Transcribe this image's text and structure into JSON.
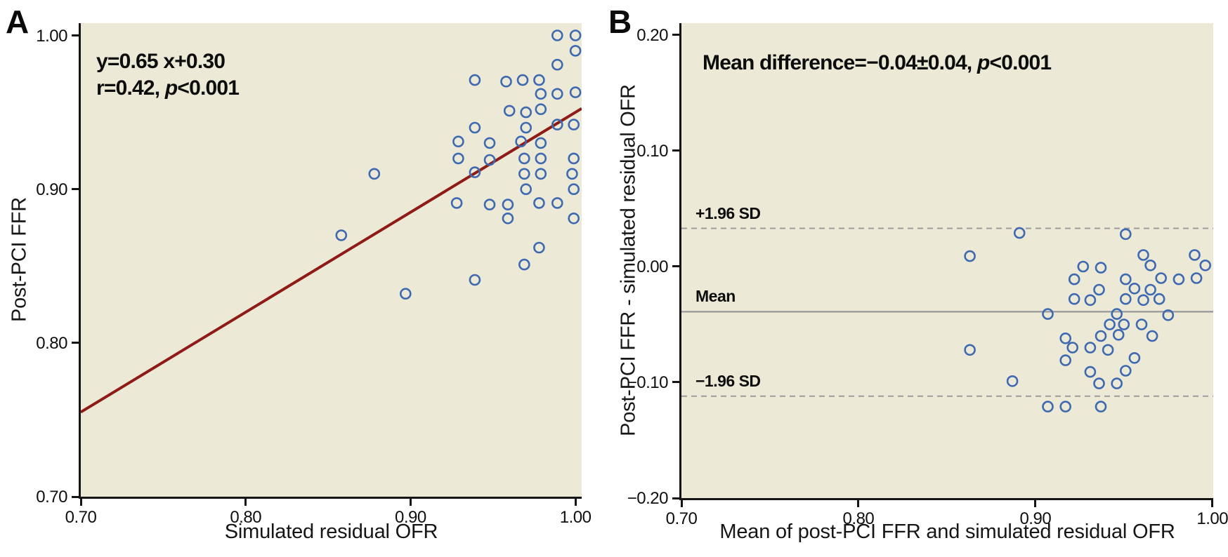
{
  "colors": {
    "plot_background": "#ECE9D6",
    "point_stroke": "#3E69B1",
    "regression_line": "#8E1B16",
    "reference_line": "#9C9C9C",
    "axis": "#151515"
  },
  "chart_data": [
    {
      "type": "scatter",
      "panel_label": "A",
      "annotation": [
        {
          "pre": "y=0.65 x+0.30",
          "italic": "",
          "post": ""
        },
        {
          "pre": "r=0.42, ",
          "italic": "p",
          "post": "<0.001"
        }
      ],
      "xlabel": "Simulated residual OFR",
      "ylabel": "Post-PCI FFR",
      "xlim": [
        0.7,
        1.0038
      ],
      "ylim": [
        0.7,
        1.008
      ],
      "grid": false,
      "xticks": [
        {
          "v": 0.7,
          "label": "0.70"
        },
        {
          "v": 0.8,
          "label": "0.80"
        },
        {
          "v": 0.9,
          "label": "0.90"
        },
        {
          "v": 1.0,
          "label": "1.00"
        }
      ],
      "yticks": [
        {
          "v": 1.0,
          "label": "1.00"
        },
        {
          "v": 0.9,
          "label": "0.90"
        },
        {
          "v": 0.8,
          "label": "0.80"
        },
        {
          "v": 0.7,
          "label": "0.70"
        }
      ],
      "regression_line": {
        "slope": 0.65,
        "intercept": 0.3,
        "r": "0.42",
        "p": "<0.001"
      },
      "points": [
        [
          0.989,
          1.0
        ],
        [
          1.0,
          1.0
        ],
        [
          1.0,
          0.99
        ],
        [
          0.989,
          0.981
        ],
        [
          0.939,
          0.971
        ],
        [
          0.958,
          0.97
        ],
        [
          0.968,
          0.971
        ],
        [
          0.978,
          0.971
        ],
        [
          0.979,
          0.962
        ],
        [
          0.989,
          0.962
        ],
        [
          1.0,
          0.963
        ],
        [
          0.96,
          0.951
        ],
        [
          0.97,
          0.95
        ],
        [
          0.979,
          0.952
        ],
        [
          0.939,
          0.94
        ],
        [
          0.97,
          0.94
        ],
        [
          0.989,
          0.942
        ],
        [
          0.999,
          0.942
        ],
        [
          0.929,
          0.931
        ],
        [
          0.948,
          0.93
        ],
        [
          0.967,
          0.931
        ],
        [
          0.979,
          0.93
        ],
        [
          0.929,
          0.92
        ],
        [
          0.948,
          0.919
        ],
        [
          0.939,
          0.911
        ],
        [
          0.969,
          0.92
        ],
        [
          0.979,
          0.92
        ],
        [
          0.999,
          0.92
        ],
        [
          0.969,
          0.91
        ],
        [
          0.979,
          0.91
        ],
        [
          0.998,
          0.91
        ],
        [
          0.97,
          0.9
        ],
        [
          0.999,
          0.9
        ],
        [
          0.928,
          0.891
        ],
        [
          0.948,
          0.89
        ],
        [
          0.959,
          0.89
        ],
        [
          0.978,
          0.891
        ],
        [
          0.989,
          0.891
        ],
        [
          0.959,
          0.881
        ],
        [
          0.999,
          0.881
        ],
        [
          0.978,
          0.862
        ],
        [
          0.969,
          0.851
        ],
        [
          0.939,
          0.841
        ],
        [
          0.897,
          0.832
        ],
        [
          0.878,
          0.91
        ],
        [
          0.858,
          0.87
        ]
      ]
    },
    {
      "type": "scatter",
      "panel_label": "B",
      "annotation": [
        {
          "pre": "Mean difference=−0.04±0.04, ",
          "italic": "p",
          "post": "<0.001"
        }
      ],
      "xlabel": "Mean of post-PCI FFR and simulated residual OFR",
      "ylabel": "Post-PCI FFR - simulated residual OFR",
      "xlim": [
        0.7,
        1.0005
      ],
      "ylim": [
        -0.2,
        0.2103
      ],
      "grid": false,
      "xticks": [
        {
          "v": 0.7,
          "label": "0.70"
        },
        {
          "v": 0.8,
          "label": "0.80"
        },
        {
          "v": 0.9,
          "label": "0.90"
        },
        {
          "v": 1.0,
          "label": "1.00"
        }
      ],
      "yticks": [
        {
          "v": 0.2,
          "label": "0.20"
        },
        {
          "v": 0.1,
          "label": "0.10"
        },
        {
          "v": 0.0,
          "label": "0.00"
        },
        {
          "v": -0.1,
          "label": "−0.10"
        },
        {
          "v": -0.2,
          "label": "−0.20"
        }
      ],
      "reference_lines": [
        {
          "label": "+1.96 SD",
          "value": 0.033,
          "style": "dashed"
        },
        {
          "label": "Mean",
          "value": -0.039,
          "style": "solid"
        },
        {
          "label": "−1.96 SD",
          "value": -0.112,
          "style": "dashed"
        }
      ],
      "points": [
        [
          0.863,
          0.009
        ],
        [
          0.891,
          0.029
        ],
        [
          0.863,
          -0.072
        ],
        [
          0.887,
          -0.099
        ],
        [
          0.951,
          0.028
        ],
        [
          0.961,
          0.01
        ],
        [
          0.99,
          0.01
        ],
        [
          0.965,
          0.001
        ],
        [
          0.996,
          0.001
        ],
        [
          0.927,
          0.0
        ],
        [
          0.937,
          -0.001
        ],
        [
          0.922,
          -0.011
        ],
        [
          0.951,
          -0.011
        ],
        [
          0.971,
          -0.01
        ],
        [
          0.981,
          -0.011
        ],
        [
          0.991,
          -0.01
        ],
        [
          0.956,
          -0.019
        ],
        [
          0.965,
          -0.02
        ],
        [
          0.936,
          -0.02
        ],
        [
          0.922,
          -0.028
        ],
        [
          0.931,
          -0.029
        ],
        [
          0.951,
          -0.028
        ],
        [
          0.961,
          -0.029
        ],
        [
          0.97,
          -0.028
        ],
        [
          0.907,
          -0.041
        ],
        [
          0.946,
          -0.041
        ],
        [
          0.975,
          -0.042
        ],
        [
          0.942,
          -0.05
        ],
        [
          0.95,
          -0.05
        ],
        [
          0.96,
          -0.05
        ],
        [
          0.937,
          -0.06
        ],
        [
          0.947,
          -0.059
        ],
        [
          0.966,
          -0.06
        ],
        [
          0.917,
          -0.062
        ],
        [
          0.921,
          -0.07
        ],
        [
          0.931,
          -0.07
        ],
        [
          0.941,
          -0.072
        ],
        [
          0.917,
          -0.081
        ],
        [
          0.956,
          -0.079
        ],
        [
          0.951,
          -0.09
        ],
        [
          0.931,
          -0.091
        ],
        [
          0.936,
          -0.101
        ],
        [
          0.946,
          -0.101
        ],
        [
          0.907,
          -0.121
        ],
        [
          0.917,
          -0.121
        ],
        [
          0.937,
          -0.121
        ]
      ]
    }
  ]
}
